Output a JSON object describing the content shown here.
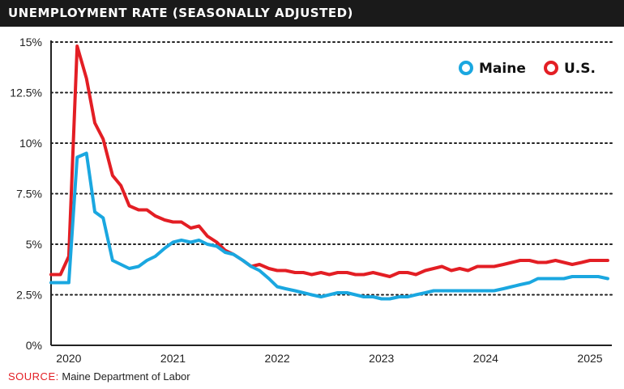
{
  "header": {
    "title": "UNEMPLOYMENT RATE (SEASONALLY ADJUSTED)"
  },
  "source": {
    "label": "SOURCE:",
    "text": "Maine Department of Labor"
  },
  "colors": {
    "maine": "#1aa7e0",
    "us": "#e31e24",
    "title_bg": "#1a1a1a",
    "grid": "#222222"
  },
  "chart_data": {
    "type": "line",
    "title": "UNEMPLOYMENT RATE (SEASONALLY ADJUSTED)",
    "xlabel": "",
    "ylabel": "",
    "x_range": [
      2019.83,
      2025.21
    ],
    "ylim": [
      0,
      15
    ],
    "y_ticks": [
      0,
      2.5,
      5,
      7.5,
      10,
      12.5,
      15
    ],
    "y_tick_labels": [
      "0%",
      "2.5%",
      "5%",
      "7.5%",
      "10%",
      "12.5%",
      "15%"
    ],
    "x_ticks": [
      2020,
      2021,
      2022,
      2023,
      2024,
      2025
    ],
    "x_tick_labels": [
      "2020",
      "2021",
      "2022",
      "2023",
      "2024",
      "2025"
    ],
    "grid": "horizontal dotted",
    "legend_position": "top-right",
    "series": [
      {
        "name": "Maine",
        "color": "#1aa7e0",
        "x": [
          2019.83,
          2019.92,
          2020.0,
          2020.08,
          2020.17,
          2020.25,
          2020.33,
          2020.42,
          2020.5,
          2020.58,
          2020.67,
          2020.75,
          2020.83,
          2020.92,
          2021.0,
          2021.08,
          2021.17,
          2021.25,
          2021.33,
          2021.42,
          2021.5,
          2021.58,
          2021.67,
          2021.75,
          2021.83,
          2021.92,
          2022.0,
          2022.08,
          2022.17,
          2022.25,
          2022.33,
          2022.42,
          2022.5,
          2022.58,
          2022.67,
          2022.75,
          2022.83,
          2022.92,
          2023.0,
          2023.08,
          2023.17,
          2023.25,
          2023.33,
          2023.42,
          2023.5,
          2023.58,
          2023.67,
          2023.75,
          2023.83,
          2023.92,
          2024.0,
          2024.08,
          2024.17,
          2024.25,
          2024.33,
          2024.42,
          2024.5,
          2024.58,
          2024.67,
          2024.75,
          2024.83,
          2024.92,
          2025.0,
          2025.08,
          2025.17
        ],
        "values": [
          3.1,
          3.1,
          3.1,
          9.3,
          9.5,
          6.6,
          6.3,
          4.2,
          4.0,
          3.8,
          3.9,
          4.2,
          4.4,
          4.8,
          5.1,
          5.2,
          5.1,
          5.2,
          5.0,
          4.9,
          4.6,
          4.5,
          4.2,
          3.9,
          3.7,
          3.3,
          2.9,
          2.8,
          2.7,
          2.6,
          2.5,
          2.4,
          2.5,
          2.6,
          2.6,
          2.5,
          2.4,
          2.4,
          2.3,
          2.3,
          2.4,
          2.4,
          2.5,
          2.6,
          2.7,
          2.7,
          2.7,
          2.7,
          2.7,
          2.7,
          2.7,
          2.7,
          2.8,
          2.9,
          3.0,
          3.1,
          3.3,
          3.3,
          3.3,
          3.3,
          3.4,
          3.4,
          3.4,
          3.4,
          3.3
        ]
      },
      {
        "name": "U.S.",
        "color": "#e31e24",
        "x": [
          2019.83,
          2019.92,
          2020.0,
          2020.08,
          2020.17,
          2020.25,
          2020.33,
          2020.42,
          2020.5,
          2020.58,
          2020.67,
          2020.75,
          2020.83,
          2020.92,
          2021.0,
          2021.08,
          2021.17,
          2021.25,
          2021.33,
          2021.42,
          2021.5,
          2021.58,
          2021.67,
          2021.75,
          2021.83,
          2021.92,
          2022.0,
          2022.08,
          2022.17,
          2022.25,
          2022.33,
          2022.42,
          2022.5,
          2022.58,
          2022.67,
          2022.75,
          2022.83,
          2022.92,
          2023.0,
          2023.08,
          2023.17,
          2023.25,
          2023.33,
          2023.42,
          2023.5,
          2023.58,
          2023.67,
          2023.75,
          2023.83,
          2023.92,
          2024.0,
          2024.08,
          2024.17,
          2024.25,
          2024.33,
          2024.42,
          2024.5,
          2024.58,
          2024.67,
          2024.75,
          2024.83,
          2024.92,
          2025.0,
          2025.08,
          2025.17
        ],
        "values": [
          3.5,
          3.5,
          4.4,
          14.8,
          13.2,
          11.0,
          10.2,
          8.4,
          7.9,
          6.9,
          6.7,
          6.7,
          6.4,
          6.2,
          6.1,
          6.1,
          5.8,
          5.9,
          5.4,
          5.1,
          4.7,
          4.5,
          4.2,
          3.9,
          4.0,
          3.8,
          3.7,
          3.7,
          3.6,
          3.6,
          3.5,
          3.6,
          3.5,
          3.6,
          3.6,
          3.5,
          3.5,
          3.6,
          3.5,
          3.4,
          3.6,
          3.6,
          3.5,
          3.7,
          3.8,
          3.9,
          3.7,
          3.8,
          3.7,
          3.9,
          3.9,
          3.9,
          4.0,
          4.1,
          4.2,
          4.2,
          4.1,
          4.1,
          4.2,
          4.1,
          4.0,
          4.1,
          4.2,
          4.2,
          4.2
        ]
      }
    ]
  }
}
